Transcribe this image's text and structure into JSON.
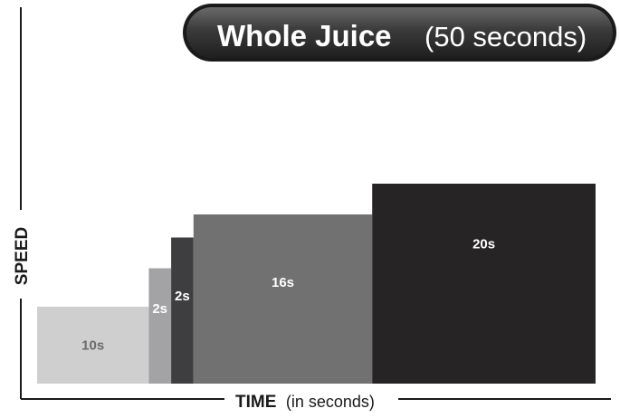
{
  "chart_data": {
    "type": "bar",
    "title": "Whole Juice",
    "subtitle": "(50 seconds)",
    "xlabel_bold": "TIME",
    "xlabel_rest": "(in seconds)",
    "ylabel": "SPEED",
    "bars": [
      {
        "label": "10s",
        "duration": 10,
        "speed": 1.0,
        "color": "#cfcfd0",
        "label_color": "#6b6b6b"
      },
      {
        "label": "2s",
        "duration": 2,
        "speed": 1.5,
        "color": "#a3a3a6",
        "label_color": "#ffffff"
      },
      {
        "label": "2s",
        "duration": 2,
        "speed": 1.9,
        "color": "#3e3e40",
        "label_color": "#ffffff"
      },
      {
        "label": "16s",
        "duration": 16,
        "speed": 2.2,
        "color": "#717172",
        "label_color": "#ffffff"
      },
      {
        "label": "20s",
        "duration": 20,
        "speed": 2.6,
        "color": "#272425",
        "label_color": "#ffffff"
      }
    ],
    "legend": "none",
    "grid": false
  }
}
